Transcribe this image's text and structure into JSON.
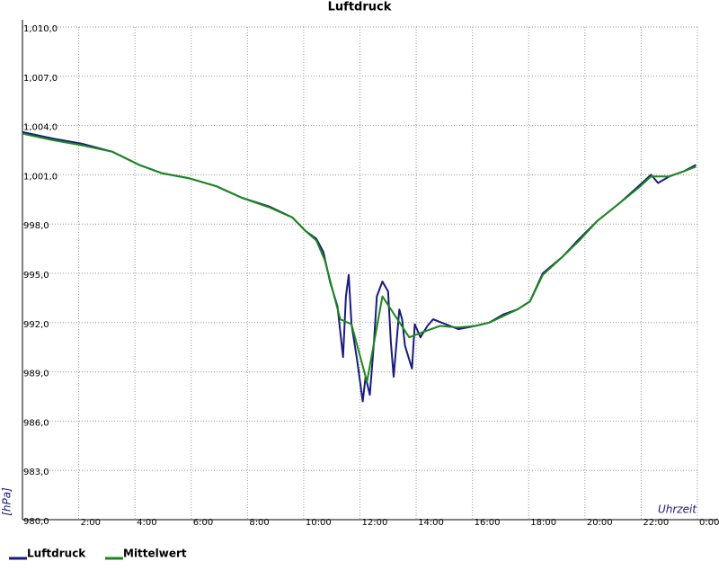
{
  "chart_data": {
    "type": "line",
    "title": "Luftdruck",
    "x_label": "Uhrzeit",
    "y_label": "[hPa]",
    "xlim": [
      0,
      24
    ],
    "xticks": [
      {
        "value": 2,
        "label": "2:00"
      },
      {
        "value": 4,
        "label": "4:00"
      },
      {
        "value": 6,
        "label": "6:00"
      },
      {
        "value": 8,
        "label": "8:00"
      },
      {
        "value": 10,
        "label": "10:00"
      },
      {
        "value": 12,
        "label": "12:00"
      },
      {
        "value": 14,
        "label": "14:00"
      },
      {
        "value": 16,
        "label": "16:00"
      },
      {
        "value": 18,
        "label": "18:00"
      },
      {
        "value": 20,
        "label": "20:00"
      },
      {
        "value": 22,
        "label": "22:00"
      },
      {
        "value": 24,
        "label": "0:00"
      }
    ],
    "ylim": [
      980,
      1010
    ],
    "yticks": [
      {
        "value": 980,
        "label": "980,0"
      },
      {
        "value": 983,
        "label": "983,0"
      },
      {
        "value": 986,
        "label": "986,0"
      },
      {
        "value": 989,
        "label": "989,0"
      },
      {
        "value": 992,
        "label": "992,0"
      },
      {
        "value": 995,
        "label": "995,0"
      },
      {
        "value": 998,
        "label": "998,0"
      },
      {
        "value": 1001,
        "label": "1,001,0"
      },
      {
        "value": 1004,
        "label": "1,004,0"
      },
      {
        "value": 1007,
        "label": "1,007,0"
      },
      {
        "value": 1010,
        "label": "1,010,0"
      }
    ],
    "grid": true,
    "series": [
      {
        "name": "Luftdruck",
        "color": "#1a1a80",
        "x": [
          0,
          1.1,
          2.1,
          3.2,
          4.15,
          4.95,
          5.9,
          6.9,
          7.8,
          8.8,
          9.6,
          10.05,
          10.45,
          10.7,
          10.95,
          11.2,
          11.4,
          11.5,
          11.6,
          11.7,
          11.9,
          12.1,
          12.2,
          12.35,
          12.5,
          12.6,
          12.8,
          13.0,
          13.1,
          13.2,
          13.4,
          13.5,
          13.6,
          13.85,
          13.95,
          14.15,
          14.4,
          14.6,
          14.9,
          15.5,
          16.1,
          16.6,
          17.1,
          17.6,
          18.05,
          18.5,
          19.2,
          19.8,
          20.45,
          21.25,
          21.9,
          22.35,
          22.6,
          23.0,
          23.5,
          23.95
        ],
        "values": [
          1003.6,
          1003.2,
          1002.9,
          1002.4,
          1001.6,
          1001.1,
          1000.8,
          1000.3,
          999.6,
          999.05,
          998.4,
          997.6,
          997.1,
          996.3,
          994.4,
          993.0,
          989.9,
          993.6,
          994.9,
          991.9,
          989.7,
          987.2,
          988.7,
          987.6,
          990.8,
          993.6,
          994.5,
          993.9,
          990.8,
          988.7,
          992.8,
          992.2,
          990.6,
          989.2,
          991.9,
          991.1,
          991.8,
          992.2,
          992.0,
          991.6,
          991.8,
          992.0,
          992.5,
          992.8,
          993.3,
          995.0,
          996.0,
          997.1,
          998.2,
          999.3,
          1000.3,
          1001.0,
          1000.5,
          1000.9,
          1001.2,
          1001.6
        ]
      },
      {
        "name": "Mittelwert",
        "color": "#1a8a1a",
        "x": [
          0,
          1.1,
          2.1,
          3.2,
          4.15,
          4.95,
          5.9,
          6.9,
          7.8,
          8.8,
          9.6,
          10.05,
          10.45,
          10.75,
          11.3,
          11.7,
          12.25,
          12.8,
          13.75,
          14.2,
          14.85,
          15.5,
          16.1,
          16.6,
          17.1,
          17.6,
          18.05,
          18.5,
          19.2,
          19.8,
          20.45,
          21.25,
          21.9,
          22.35,
          23.0,
          23.5,
          23.95
        ],
        "values": [
          1003.5,
          1003.1,
          1002.8,
          1002.4,
          1001.6,
          1001.1,
          1000.8,
          1000.3,
          999.6,
          999.0,
          998.4,
          997.6,
          997.0,
          995.8,
          992.2,
          991.9,
          988.4,
          993.6,
          991.1,
          991.4,
          991.8,
          991.7,
          991.8,
          992.0,
          992.4,
          992.8,
          993.3,
          994.9,
          996.0,
          997.0,
          998.2,
          999.3,
          1000.2,
          1000.9,
          1000.9,
          1001.2,
          1001.5
        ]
      }
    ]
  }
}
